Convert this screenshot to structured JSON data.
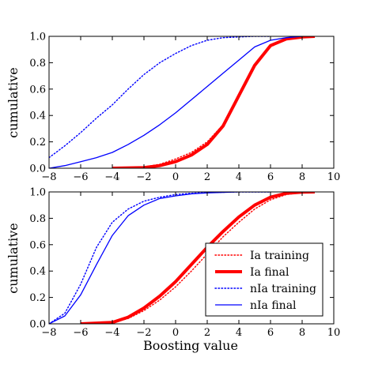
{
  "chart_data": [
    {
      "type": "line",
      "xlabel": "",
      "ylabel": "cumulative",
      "xlim": [
        -8,
        10
      ],
      "ylim": [
        0.0,
        1.0
      ],
      "xticks": [
        "−8",
        "−6",
        "−4",
        "−2",
        "0",
        "2",
        "4",
        "6",
        "8",
        "10"
      ],
      "yticks": [
        "0.0",
        "0.2",
        "0.4",
        "0.6",
        "0.8",
        "1.0"
      ],
      "series": [
        {
          "key": "ia_training",
          "color": "#ff0000",
          "style": "dotted",
          "x": [
            -4,
            -2,
            -1,
            0,
            1,
            2,
            3,
            4,
            5,
            6,
            7,
            8,
            8.8
          ],
          "y": [
            0.0,
            0.01,
            0.03,
            0.07,
            0.12,
            0.2,
            0.33,
            0.55,
            0.78,
            0.92,
            0.98,
            0.995,
            1.0
          ]
        },
        {
          "key": "ia_final",
          "color": "#ff0000",
          "style": "thick",
          "x": [
            -4,
            -2,
            -1,
            0,
            1,
            2,
            3,
            4,
            5,
            6,
            7,
            8,
            8.8
          ],
          "y": [
            0.0,
            0.005,
            0.02,
            0.05,
            0.1,
            0.18,
            0.32,
            0.55,
            0.78,
            0.93,
            0.98,
            0.995,
            1.0
          ]
        },
        {
          "key": "nia_training",
          "color": "#0000ff",
          "style": "dotted",
          "x": [
            -8,
            -7,
            -6,
            -5,
            -4,
            -3,
            -2,
            -1,
            0,
            1,
            2,
            3,
            4,
            5,
            6
          ],
          "y": [
            0.08,
            0.17,
            0.27,
            0.38,
            0.48,
            0.6,
            0.71,
            0.8,
            0.87,
            0.93,
            0.97,
            0.99,
            0.995,
            1.0,
            1.0
          ]
        },
        {
          "key": "nia_final",
          "color": "#0000ff",
          "style": "solid",
          "x": [
            -8,
            -7,
            -6,
            -5,
            -4,
            -3,
            -2,
            -1,
            0,
            1,
            2,
            3,
            4,
            5,
            6,
            7,
            8
          ],
          "y": [
            0.0,
            0.02,
            0.05,
            0.08,
            0.12,
            0.18,
            0.25,
            0.33,
            0.42,
            0.52,
            0.62,
            0.72,
            0.82,
            0.92,
            0.97,
            0.99,
            1.0
          ]
        }
      ]
    },
    {
      "type": "line",
      "xlabel": "Boosting value",
      "ylabel": "cumulative",
      "xlim": [
        -8,
        10
      ],
      "ylim": [
        0.0,
        1.0
      ],
      "xticks": [
        "−8",
        "−6",
        "−4",
        "−2",
        "0",
        "2",
        "4",
        "6",
        "8",
        "10"
      ],
      "yticks": [
        "0.0",
        "0.2",
        "0.4",
        "0.6",
        "0.8",
        "1.0"
      ],
      "legend": {
        "placement": "lower-right",
        "entries": [
          {
            "series": "ia_training",
            "label": "Ia training"
          },
          {
            "series": "ia_final",
            "label": "Ia final"
          },
          {
            "series": "nia_training",
            "label": "nIa training"
          },
          {
            "series": "nia_final",
            "label": "nIa final"
          }
        ]
      },
      "series": [
        {
          "key": "ia_training",
          "color": "#ff0000",
          "style": "dotted",
          "x": [
            -6,
            -4,
            -3,
            -2,
            -1,
            0,
            1,
            2,
            3,
            4,
            5,
            6,
            7,
            8,
            8.8
          ],
          "y": [
            0.0,
            0.01,
            0.04,
            0.1,
            0.18,
            0.28,
            0.4,
            0.53,
            0.66,
            0.77,
            0.87,
            0.94,
            0.98,
            0.995,
            1.0
          ]
        },
        {
          "key": "ia_final",
          "color": "#ff0000",
          "style": "thick",
          "x": [
            -6,
            -4,
            -3,
            -2,
            -1,
            0,
            1,
            2,
            3,
            4,
            5,
            6,
            7,
            8,
            8.8
          ],
          "y": [
            0.0,
            0.01,
            0.05,
            0.12,
            0.21,
            0.32,
            0.45,
            0.58,
            0.7,
            0.81,
            0.9,
            0.96,
            0.99,
            0.998,
            1.0
          ]
        },
        {
          "key": "nia_training",
          "color": "#0000ff",
          "style": "dotted",
          "x": [
            -8,
            -7,
            -6,
            -5,
            -4,
            -3,
            -2,
            -1,
            0,
            1,
            2,
            4,
            6
          ],
          "y": [
            0.0,
            0.08,
            0.3,
            0.58,
            0.77,
            0.87,
            0.93,
            0.96,
            0.98,
            0.99,
            0.995,
            1.0,
            1.0
          ]
        },
        {
          "key": "nia_final",
          "color": "#0000ff",
          "style": "solid",
          "x": [
            -8,
            -7,
            -6,
            -5,
            -4,
            -3,
            -2,
            -1,
            0,
            1,
            2,
            4,
            6
          ],
          "y": [
            0.0,
            0.06,
            0.22,
            0.45,
            0.67,
            0.82,
            0.9,
            0.95,
            0.97,
            0.985,
            0.993,
            1.0,
            1.0
          ]
        }
      ]
    }
  ]
}
